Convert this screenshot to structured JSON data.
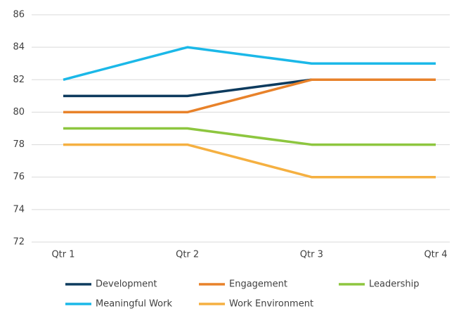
{
  "chart_data": {
    "type": "line",
    "categories": [
      "Qtr 1",
      "Qtr 2",
      "Qtr 3",
      "Qtr 4"
    ],
    "series": [
      {
        "name": "Development",
        "color": "#0d3b5e",
        "values": [
          81,
          81,
          82,
          82
        ]
      },
      {
        "name": "Engagement",
        "color": "#e8822a",
        "values": [
          80,
          80,
          82,
          82
        ]
      },
      {
        "name": "Leadership",
        "color": "#8dc63f",
        "values": [
          79,
          79,
          78,
          78
        ]
      },
      {
        "name": "Meaningful Work",
        "color": "#1bb8e8",
        "values": [
          82,
          84,
          83,
          83
        ]
      },
      {
        "name": "Work Environment",
        "color": "#f5b041",
        "values": [
          78,
          78,
          76,
          76
        ]
      }
    ],
    "ylim": [
      72,
      86
    ],
    "yticks": [
      72,
      74,
      76,
      78,
      80,
      82,
      84,
      86
    ],
    "grid": true,
    "legend": "bottom"
  }
}
